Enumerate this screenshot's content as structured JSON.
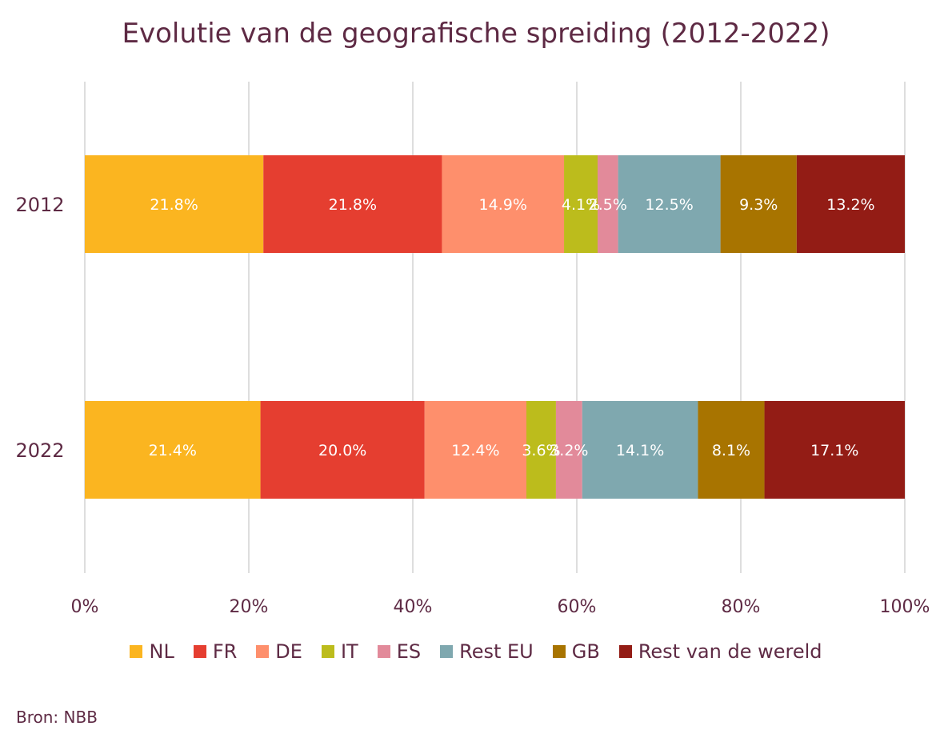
{
  "title": "Evolutie van de geografische spreiding (2012-2022)",
  "source": "Bron: NBB",
  "chart_data": {
    "type": "bar",
    "orientation": "horizontal",
    "stacked": "percent",
    "categories": [
      "2012",
      "2022"
    ],
    "series": [
      {
        "name": "NL",
        "color": "#fbb520",
        "values": [
          21.8,
          21.4
        ],
        "labels": [
          "21.8%",
          "21.4%"
        ]
      },
      {
        "name": "FR",
        "color": "#e53e30",
        "values": [
          21.8,
          20.0
        ],
        "labels": [
          "21.8%",
          "20.0%"
        ]
      },
      {
        "name": "DE",
        "color": "#fe8f6c",
        "values": [
          14.9,
          12.4
        ],
        "labels": [
          "14.9%",
          "12.4%"
        ]
      },
      {
        "name": "IT",
        "color": "#bcbc1c",
        "values": [
          4.1,
          3.6
        ],
        "labels": [
          "4.1%",
          "3.6%"
        ]
      },
      {
        "name": "ES",
        "color": "#e28a9a",
        "values": [
          2.5,
          3.2
        ],
        "labels": [
          "2.5%",
          "3.2%"
        ]
      },
      {
        "name": "Rest EU",
        "color": "#7fa8af",
        "values": [
          12.5,
          14.1
        ],
        "labels": [
          "12.5%",
          "14.1%"
        ]
      },
      {
        "name": "GB",
        "color": "#a87400",
        "values": [
          9.3,
          8.1
        ],
        "labels": [
          "9.3%",
          "8.1%"
        ]
      },
      {
        "name": "Rest van de wereld",
        "color": "#931c15",
        "values": [
          13.2,
          17.1
        ],
        "labels": [
          "13.2%",
          "17.1%"
        ]
      }
    ],
    "xlim": [
      0,
      100
    ],
    "xticks": [
      "0%",
      "20%",
      "40%",
      "60%",
      "80%",
      "100%"
    ],
    "grid": true,
    "legend_position": "bottom"
  }
}
